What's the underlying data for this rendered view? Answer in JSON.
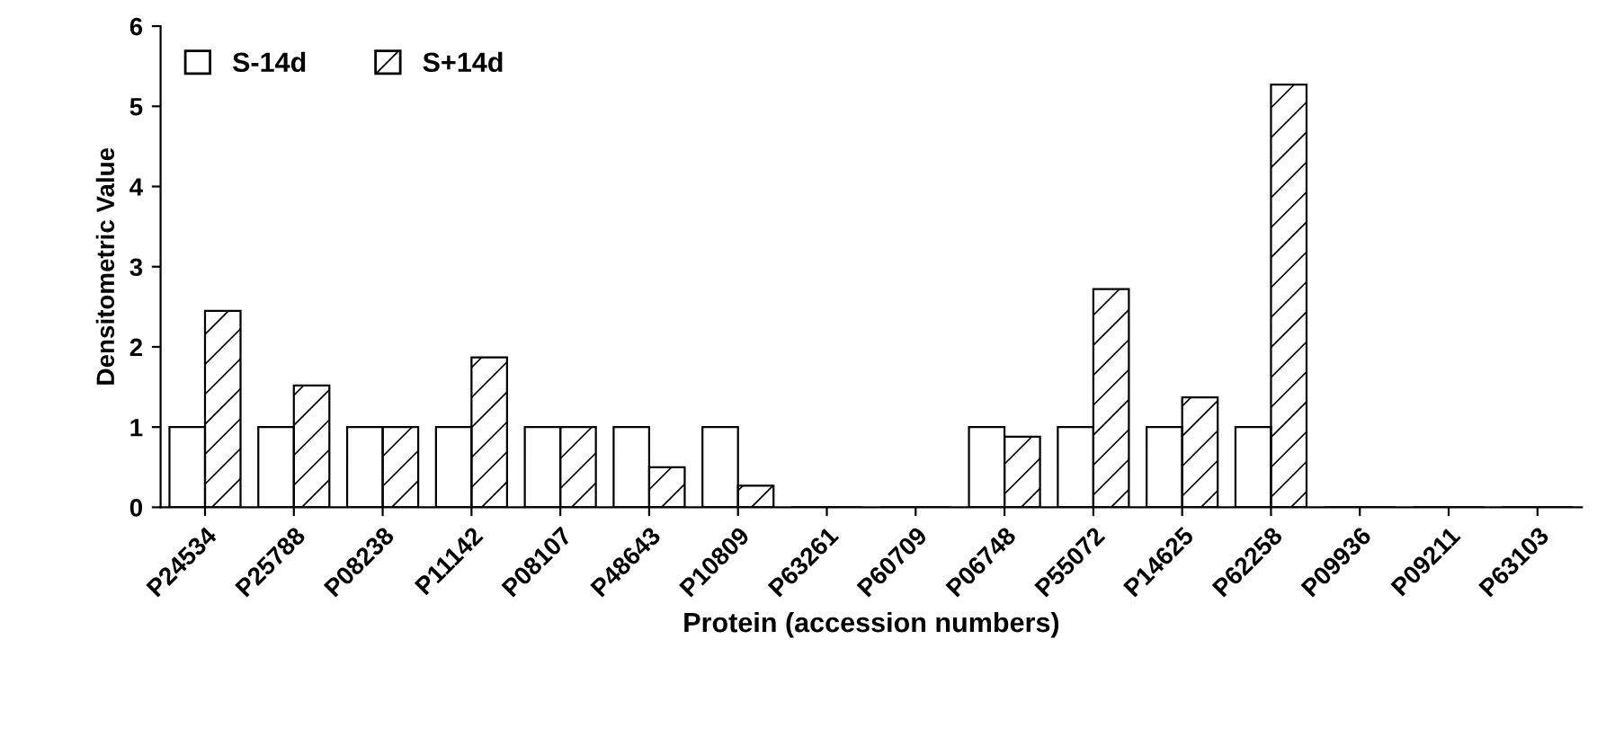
{
  "chart_data": {
    "type": "bar",
    "xlabel": "Protein (accession numbers)",
    "ylabel": "Densitometric Value",
    "categories": [
      "P24534",
      "P25788",
      "P08238",
      "P11142",
      "P08107",
      "P48643",
      "P10809",
      "P63261",
      "P60709",
      "P06748",
      "P55072",
      "P14625",
      "P62258",
      "P09936",
      "P09211",
      "P63103"
    ],
    "series": [
      {
        "name": "S-14d",
        "color": "#ffffff",
        "values": [
          1,
          1,
          1,
          1,
          1,
          1,
          1,
          0,
          0,
          1,
          1,
          1,
          1,
          0,
          0,
          0
        ]
      },
      {
        "name": "S+14d",
        "color": "#000000",
        "values": [
          2.45,
          1.52,
          1.0,
          1.87,
          1.0,
          0.5,
          0.27,
          0,
          0,
          0.88,
          2.72,
          1.37,
          5.27,
          0,
          0,
          0
        ]
      }
    ],
    "ylim": [
      0,
      6
    ],
    "yticks": [
      0,
      1,
      2,
      3,
      4,
      5,
      6
    ],
    "grid": false,
    "legend": "top left"
  }
}
